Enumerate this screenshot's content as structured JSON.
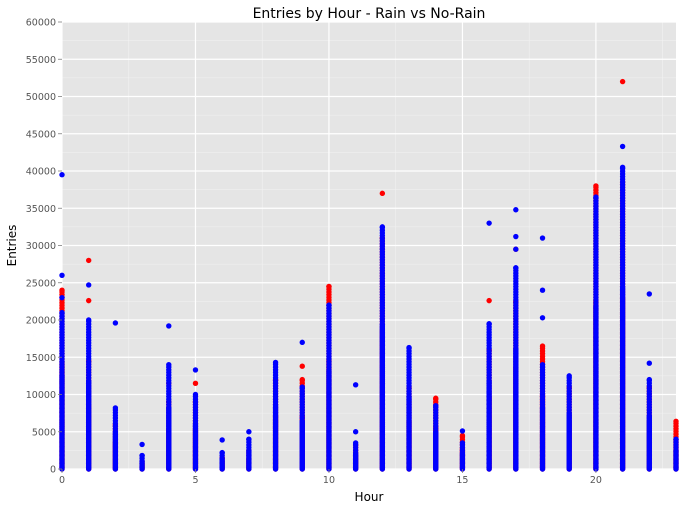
{
  "chart_data": {
    "type": "scatter",
    "title": "Entries by Hour - Rain vs No-Rain",
    "xlabel": "Hour",
    "ylabel": "Entries",
    "xlim": [
      0,
      23
    ],
    "ylim": [
      0,
      60000
    ],
    "x_ticks": [
      0,
      5,
      10,
      15,
      20
    ],
    "y_ticks": [
      0,
      5000,
      10000,
      15000,
      20000,
      25000,
      30000,
      35000,
      40000,
      45000,
      50000,
      55000,
      60000
    ],
    "grid": true,
    "legend": "none",
    "background": "#e5e5e5",
    "series": [
      {
        "color": "#ff0000",
        "columns": [
          {
            "hour": 0,
            "max": 24000,
            "outliers": []
          },
          {
            "hour": 1,
            "max": 14500,
            "outliers": [
              22600,
              28000
            ]
          },
          {
            "hour": 2,
            "max": 6000,
            "outliers": []
          },
          {
            "hour": 3,
            "max": 1000,
            "outliers": []
          },
          {
            "hour": 4,
            "max": 9000,
            "outliers": [
              11500
            ]
          },
          {
            "hour": 5,
            "max": 9000,
            "outliers": [
              11500
            ]
          },
          {
            "hour": 6,
            "max": 1500,
            "outliers": []
          },
          {
            "hour": 7,
            "max": 2500,
            "outliers": []
          },
          {
            "hour": 8,
            "max": 12000,
            "outliers": []
          },
          {
            "hour": 9,
            "max": 12000,
            "outliers": [
              13800
            ]
          },
          {
            "hour": 10,
            "max": 24500,
            "outliers": []
          },
          {
            "hour": 11,
            "max": 3200,
            "outliers": []
          },
          {
            "hour": 12,
            "max": 31000,
            "outliers": [
              37000
            ]
          },
          {
            "hour": 13,
            "max": 11000,
            "outliers": []
          },
          {
            "hour": 14,
            "max": 9500,
            "outliers": []
          },
          {
            "hour": 15,
            "max": 4500,
            "outliers": []
          },
          {
            "hour": 16,
            "max": 16000,
            "outliers": [
              22600
            ]
          },
          {
            "hour": 17,
            "max": 22500,
            "outliers": [
              29500
            ]
          },
          {
            "hour": 18,
            "max": 16500,
            "outliers": []
          },
          {
            "hour": 19,
            "max": 11000,
            "outliers": []
          },
          {
            "hour": 20,
            "max": 38000,
            "outliers": []
          },
          {
            "hour": 21,
            "max": 38500,
            "outliers": [
              52000
            ]
          },
          {
            "hour": 22,
            "max": 11000,
            "outliers": []
          },
          {
            "hour": 23,
            "max": 6400,
            "outliers": []
          }
        ]
      },
      {
        "color": "#0000ff",
        "columns": [
          {
            "hour": 0,
            "max": 21000,
            "outliers": [
              23000,
              26000,
              39500
            ]
          },
          {
            "hour": 1,
            "max": 20000,
            "outliers": [
              24700
            ]
          },
          {
            "hour": 2,
            "max": 8200,
            "outliers": [
              19600
            ]
          },
          {
            "hour": 3,
            "max": 1800,
            "outliers": [
              3300
            ]
          },
          {
            "hour": 4,
            "max": 14000,
            "outliers": [
              19200
            ]
          },
          {
            "hour": 5,
            "max": 10000,
            "outliers": [
              13300
            ]
          },
          {
            "hour": 6,
            "max": 2200,
            "outliers": [
              3900
            ]
          },
          {
            "hour": 7,
            "max": 4000,
            "outliers": [
              5000
            ]
          },
          {
            "hour": 8,
            "max": 14300,
            "outliers": []
          },
          {
            "hour": 9,
            "max": 11000,
            "outliers": [
              17000
            ]
          },
          {
            "hour": 10,
            "max": 22000,
            "outliers": []
          },
          {
            "hour": 11,
            "max": 3500,
            "outliers": [
              5000,
              11300
            ]
          },
          {
            "hour": 12,
            "max": 32500,
            "outliers": []
          },
          {
            "hour": 13,
            "max": 16300,
            "outliers": []
          },
          {
            "hour": 14,
            "max": 8500,
            "outliers": []
          },
          {
            "hour": 15,
            "max": 3500,
            "outliers": [
              5100
            ]
          },
          {
            "hour": 16,
            "max": 19500,
            "outliers": [
              33000
            ]
          },
          {
            "hour": 17,
            "max": 27000,
            "outliers": [
              29500,
              31200,
              34800
            ]
          },
          {
            "hour": 18,
            "max": 14000,
            "outliers": [
              20300,
              24000,
              31000
            ]
          },
          {
            "hour": 19,
            "max": 12500,
            "outliers": []
          },
          {
            "hour": 20,
            "max": 36500,
            "outliers": []
          },
          {
            "hour": 21,
            "max": 40500,
            "outliers": [
              43300
            ]
          },
          {
            "hour": 22,
            "max": 12000,
            "outliers": [
              14200,
              23500
            ]
          },
          {
            "hour": 23,
            "max": 4000,
            "outliers": []
          }
        ]
      }
    ]
  }
}
